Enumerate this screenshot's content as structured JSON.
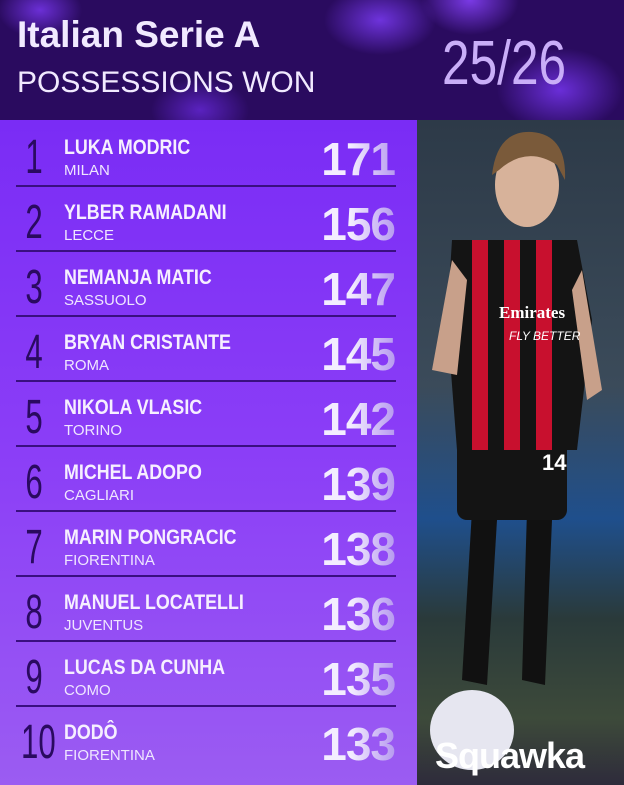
{
  "header": {
    "title": "Italian Serie A",
    "subtitle": "POSSESSIONS WON",
    "season": "25/26"
  },
  "rows": [
    {
      "rank": "1",
      "name": "LUKA MODRIC",
      "club": "MILAN",
      "value": "171"
    },
    {
      "rank": "2",
      "name": "YLBER RAMADANI",
      "club": "LECCE",
      "value": "156"
    },
    {
      "rank": "3",
      "name": "NEMANJA MATIC",
      "club": "SASSUOLO",
      "value": "147"
    },
    {
      "rank": "4",
      "name": "BRYAN CRISTANTE",
      "club": "ROMA",
      "value": "145"
    },
    {
      "rank": "5",
      "name": "NIKOLA VLASIC",
      "club": "TORINO",
      "value": "142"
    },
    {
      "rank": "6",
      "name": "MICHEL ADOPO",
      "club": "CAGLIARI",
      "value": "139"
    },
    {
      "rank": "7",
      "name": "MARIN PONGRACIC",
      "club": "FIORENTINA",
      "value": "138"
    },
    {
      "rank": "8",
      "name": "MANUEL LOCATELLI",
      "club": "JUVENTUS",
      "value": "136"
    },
    {
      "rank": "9",
      "name": "LUCAS DA CUNHA",
      "club": "COMO",
      "value": "135"
    },
    {
      "rank": "10",
      "name": "DODÔ",
      "club": "FIORENTINA",
      "value": "133"
    }
  ],
  "photo": {
    "shirt_sponsor": "Emirates",
    "shirt_sponsor_line2": "FLY BETTER",
    "shirt_number": "14"
  },
  "brand": "Squawka",
  "colors": {
    "header_bg": "#2a0b5f",
    "table_bg": "#7a2cf5",
    "rank": "#2a0a60",
    "season": "#c9aef8"
  }
}
